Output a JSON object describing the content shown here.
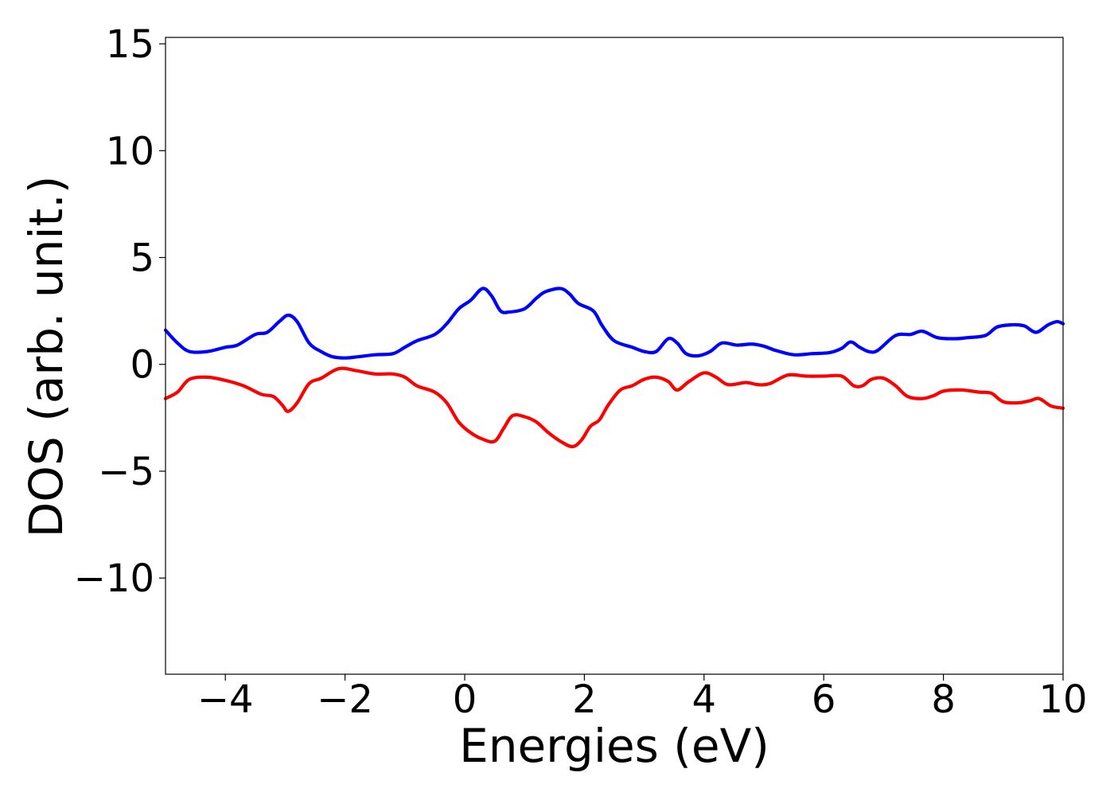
{
  "chart_data": {
    "type": "line",
    "title": "",
    "xlabel": "Energies (eV)",
    "ylabel": "DOS (arb. unit.)",
    "xlim": [
      -5,
      10
    ],
    "ylim": [
      -14.5,
      15.3
    ],
    "grid": false,
    "legend": "none",
    "x_ticks": [
      -4,
      -2,
      0,
      2,
      4,
      6,
      8,
      10
    ],
    "x_tick_labels": [
      "−4",
      "−2",
      "0",
      "2",
      "4",
      "6",
      "8",
      "10"
    ],
    "y_ticks": [
      15,
      10,
      5,
      0,
      -5,
      -10
    ],
    "y_tick_labels": [
      "15",
      "10",
      "5",
      "0",
      "−5",
      "−10"
    ],
    "series": [
      {
        "color": "#0000ff",
        "points": [
          [
            -5.0,
            1.6
          ],
          [
            -4.8,
            1.0
          ],
          [
            -4.6,
            0.6
          ],
          [
            -4.3,
            0.6
          ],
          [
            -4.0,
            0.8
          ],
          [
            -3.8,
            0.9
          ],
          [
            -3.5,
            1.4
          ],
          [
            -3.3,
            1.5
          ],
          [
            -3.1,
            2.0
          ],
          [
            -2.95,
            2.3
          ],
          [
            -2.8,
            2.0
          ],
          [
            -2.6,
            1.0
          ],
          [
            -2.4,
            0.6
          ],
          [
            -2.2,
            0.35
          ],
          [
            -2.0,
            0.3
          ],
          [
            -1.8,
            0.35
          ],
          [
            -1.5,
            0.45
          ],
          [
            -1.2,
            0.5
          ],
          [
            -1.0,
            0.8
          ],
          [
            -0.8,
            1.1
          ],
          [
            -0.5,
            1.4
          ],
          [
            -0.3,
            1.9
          ],
          [
            -0.1,
            2.6
          ],
          [
            0.1,
            3.0
          ],
          [
            0.3,
            3.55
          ],
          [
            0.45,
            3.2
          ],
          [
            0.6,
            2.5
          ],
          [
            0.75,
            2.45
          ],
          [
            1.0,
            2.6
          ],
          [
            1.2,
            3.1
          ],
          [
            1.35,
            3.4
          ],
          [
            1.6,
            3.55
          ],
          [
            1.75,
            3.3
          ],
          [
            1.9,
            2.85
          ],
          [
            2.15,
            2.5
          ],
          [
            2.3,
            1.8
          ],
          [
            2.5,
            1.1
          ],
          [
            2.8,
            0.8
          ],
          [
            3.0,
            0.6
          ],
          [
            3.2,
            0.6
          ],
          [
            3.4,
            1.2
          ],
          [
            3.55,
            1.0
          ],
          [
            3.7,
            0.5
          ],
          [
            3.9,
            0.4
          ],
          [
            4.1,
            0.6
          ],
          [
            4.3,
            1.0
          ],
          [
            4.55,
            0.9
          ],
          [
            4.8,
            0.95
          ],
          [
            5.0,
            0.85
          ],
          [
            5.2,
            0.65
          ],
          [
            5.5,
            0.45
          ],
          [
            5.8,
            0.5
          ],
          [
            6.1,
            0.55
          ],
          [
            6.3,
            0.75
          ],
          [
            6.45,
            1.05
          ],
          [
            6.6,
            0.8
          ],
          [
            6.75,
            0.6
          ],
          [
            6.9,
            0.65
          ],
          [
            7.2,
            1.35
          ],
          [
            7.45,
            1.4
          ],
          [
            7.65,
            1.55
          ],
          [
            7.9,
            1.25
          ],
          [
            8.2,
            1.2
          ],
          [
            8.4,
            1.25
          ],
          [
            8.7,
            1.35
          ],
          [
            8.9,
            1.75
          ],
          [
            9.15,
            1.85
          ],
          [
            9.35,
            1.8
          ],
          [
            9.55,
            1.5
          ],
          [
            9.75,
            1.85
          ],
          [
            9.9,
            2.0
          ],
          [
            10.0,
            1.9
          ]
        ]
      },
      {
        "color": "#ff0000",
        "points": [
          [
            -5.0,
            -1.6
          ],
          [
            -4.8,
            -1.3
          ],
          [
            -4.6,
            -0.7
          ],
          [
            -4.3,
            -0.6
          ],
          [
            -4.0,
            -0.75
          ],
          [
            -3.7,
            -1.0
          ],
          [
            -3.4,
            -1.4
          ],
          [
            -3.2,
            -1.5
          ],
          [
            -3.05,
            -1.9
          ],
          [
            -2.95,
            -2.2
          ],
          [
            -2.8,
            -1.8
          ],
          [
            -2.6,
            -0.9
          ],
          [
            -2.4,
            -0.65
          ],
          [
            -2.1,
            -0.2
          ],
          [
            -1.8,
            -0.3
          ],
          [
            -1.5,
            -0.45
          ],
          [
            -1.2,
            -0.45
          ],
          [
            -1.0,
            -0.6
          ],
          [
            -0.8,
            -1.0
          ],
          [
            -0.5,
            -1.3
          ],
          [
            -0.3,
            -1.8
          ],
          [
            -0.1,
            -2.7
          ],
          [
            0.1,
            -3.2
          ],
          [
            0.3,
            -3.5
          ],
          [
            0.5,
            -3.6
          ],
          [
            0.65,
            -3.0
          ],
          [
            0.8,
            -2.4
          ],
          [
            1.0,
            -2.45
          ],
          [
            1.2,
            -2.7
          ],
          [
            1.4,
            -3.2
          ],
          [
            1.6,
            -3.6
          ],
          [
            1.8,
            -3.85
          ],
          [
            1.95,
            -3.55
          ],
          [
            2.1,
            -2.9
          ],
          [
            2.25,
            -2.6
          ],
          [
            2.4,
            -1.9
          ],
          [
            2.6,
            -1.2
          ],
          [
            2.8,
            -1.0
          ],
          [
            3.0,
            -0.7
          ],
          [
            3.2,
            -0.6
          ],
          [
            3.4,
            -0.8
          ],
          [
            3.55,
            -1.2
          ],
          [
            3.75,
            -0.8
          ],
          [
            4.0,
            -0.4
          ],
          [
            4.2,
            -0.6
          ],
          [
            4.4,
            -0.95
          ],
          [
            4.7,
            -0.85
          ],
          [
            4.9,
            -0.95
          ],
          [
            5.1,
            -0.9
          ],
          [
            5.4,
            -0.5
          ],
          [
            5.7,
            -0.55
          ],
          [
            6.0,
            -0.55
          ],
          [
            6.3,
            -0.55
          ],
          [
            6.5,
            -1.0
          ],
          [
            6.65,
            -1.0
          ],
          [
            6.8,
            -0.7
          ],
          [
            7.0,
            -0.65
          ],
          [
            7.2,
            -1.0
          ],
          [
            7.4,
            -1.5
          ],
          [
            7.65,
            -1.6
          ],
          [
            7.85,
            -1.45
          ],
          [
            8.0,
            -1.25
          ],
          [
            8.3,
            -1.2
          ],
          [
            8.6,
            -1.3
          ],
          [
            8.8,
            -1.35
          ],
          [
            9.0,
            -1.75
          ],
          [
            9.25,
            -1.8
          ],
          [
            9.45,
            -1.7
          ],
          [
            9.6,
            -1.6
          ],
          [
            9.8,
            -1.95
          ],
          [
            10.0,
            -2.05
          ]
        ]
      }
    ]
  }
}
